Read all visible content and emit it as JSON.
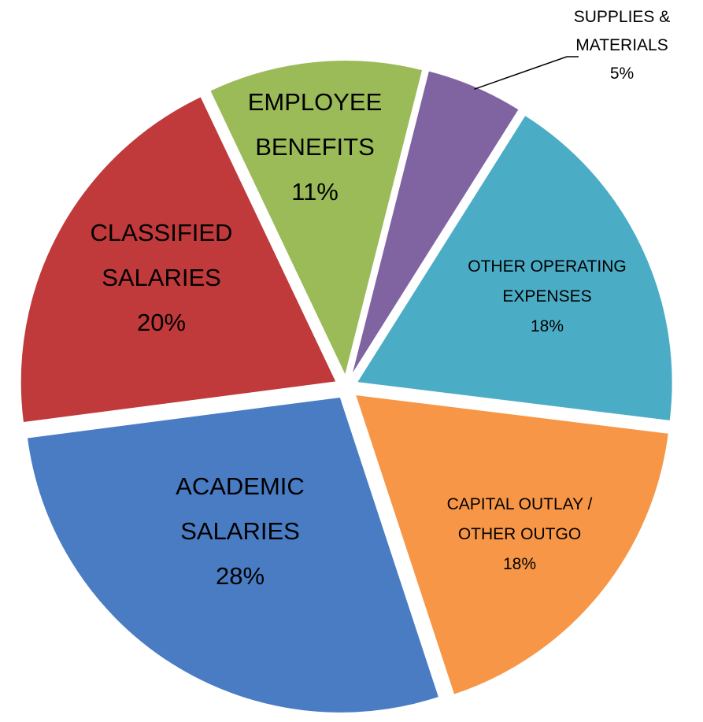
{
  "chart_data": {
    "type": "pie",
    "categories": [
      "EMPLOYEE BENEFITS",
      "SUPPLIES & MATERIALS",
      "OTHER OPERATING EXPENSES",
      "CAPITAL OUTLAY / OTHER OUTGO",
      "ACADEMIC SALARIES",
      "CLASSIFIED SALARIES"
    ],
    "values": [
      11,
      5,
      18,
      18,
      28,
      20
    ],
    "value_labels": [
      "11%",
      "5%",
      "18%",
      "18%",
      "28%",
      "20%"
    ],
    "colors": [
      "#9bbb59",
      "#8064a2",
      "#4bacc6",
      "#f79646",
      "#4a7cc4",
      "#c0393b"
    ]
  }
}
